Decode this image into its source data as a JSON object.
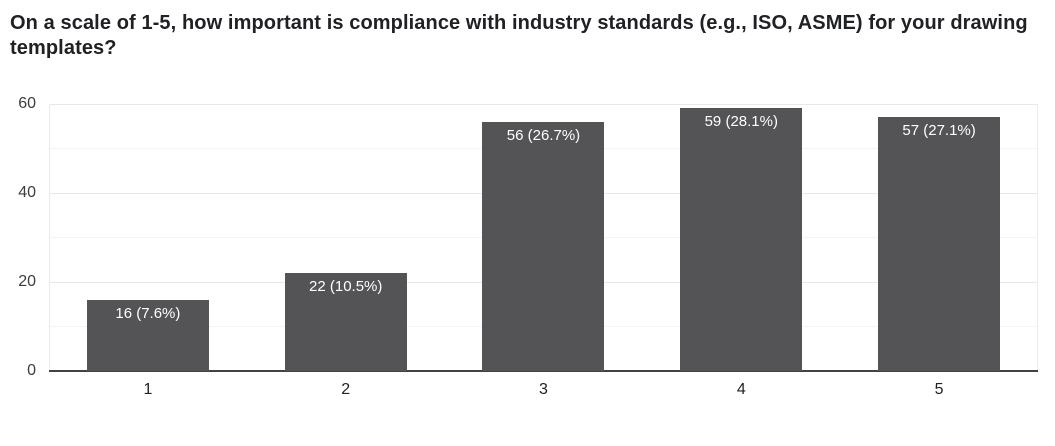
{
  "title": "On a scale of 1-5, how important is compliance with industry standards (e.g., ISO, ASME) for your drawing templates?",
  "chart_data": {
    "type": "bar",
    "title": "On a scale of 1-5, how important is compliance with industry standards (e.g., ISO, ASME) for your drawing templates?",
    "categories": [
      "1",
      "2",
      "3",
      "4",
      "5"
    ],
    "values": [
      16,
      22,
      56,
      59,
      57
    ],
    "percentages": [
      7.6,
      10.5,
      26.7,
      28.1,
      27.1
    ],
    "bar_labels": [
      "16 (7.6%)",
      "22 (10.5%)",
      "56 (26.7%)",
      "59 (28.1%)",
      "57 (27.1%)"
    ],
    "xlabel": "",
    "ylabel": "",
    "ylim": [
      0,
      60
    ],
    "yticks": [
      0,
      20,
      40,
      60
    ],
    "minor_gridlines": [
      10,
      30,
      50
    ],
    "grid": "horizontal-on",
    "legend": "none",
    "colors": {
      "bar": "#545456",
      "bar_label_text": "#ffffff",
      "axis_line": "#424242",
      "gridline_major": "#e8e8e8",
      "gridline_minor": "#f4f4f4",
      "plot_border": "#ebebeb",
      "tick_label": "#3c3c3c",
      "title_text": "#202124",
      "background": "#ffffff"
    }
  }
}
